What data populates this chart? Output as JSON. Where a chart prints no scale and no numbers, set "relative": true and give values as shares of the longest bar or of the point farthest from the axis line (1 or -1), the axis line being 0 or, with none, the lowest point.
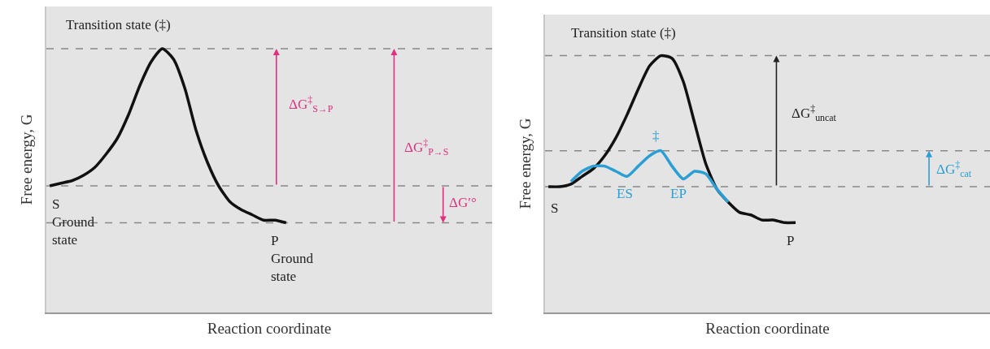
{
  "chart_data": [
    {
      "type": "line",
      "xlabel": "Reaction coordinate",
      "ylabel": "Free energy, G",
      "relative": true,
      "tick_labels": false,
      "marker": "none",
      "line_style": "solid",
      "categories": [
        null,
        null,
        null,
        null,
        null,
        null,
        null,
        null,
        null,
        null,
        null,
        null,
        null,
        null,
        null,
        null,
        null,
        null,
        null,
        null,
        null,
        null,
        null,
        null,
        null,
        null,
        null,
        null,
        null,
        null,
        null,
        null,
        null,
        null,
        null,
        null,
        null,
        null,
        null,
        null
      ],
      "series": [
        {
          "color": "#111111",
          "values": [
            0.48,
            0.49,
            0.5,
            0.52,
            0.55,
            0.6,
            0.66,
            0.75,
            0.86,
            0.95,
            1.0,
            0.96,
            0.85,
            0.69,
            0.57,
            0.48,
            0.42,
            0.39,
            0.37,
            0.35,
            0.35,
            0.34,
            null,
            null,
            null,
            null,
            null,
            null,
            null,
            null,
            null,
            null,
            null,
            null,
            null,
            null,
            null,
            null,
            null,
            null
          ]
        }
      ],
      "ref_lines": [
        {
          "axis": "y",
          "value": 1.0,
          "color": "#888888",
          "line_style": "dashed"
        },
        {
          "axis": "y",
          "value": 0.48,
          "color": "#888888",
          "line_style": "dashed"
        },
        {
          "axis": "y",
          "value": 0.34,
          "color": "#888888",
          "line_style": "dashed"
        }
      ],
      "annotations": [
        "Transition state (‡)",
        "S\nGround\nstate",
        "P\nGround\nstate",
        "ΔG$^{‡}$$_{S→P}$",
        "ΔG$^{‡}$$_{P→S}$",
        "ΔG′°"
      ]
    },
    {
      "type": "line",
      "xlabel": "Reaction coordinate",
      "ylabel": "Free energy, G",
      "relative": true,
      "tick_labels": false,
      "marker": "none",
      "line_style": "solid",
      "categories": [
        null,
        null,
        null,
        null,
        null,
        null,
        null,
        null,
        null,
        null,
        null,
        null,
        null,
        null,
        null,
        null,
        null,
        null,
        null,
        null,
        null,
        null,
        null,
        null,
        null,
        null,
        null,
        null,
        null,
        null,
        null,
        null,
        null,
        null,
        null,
        null,
        null,
        null,
        null,
        null
      ],
      "series": [
        {
          "color": "#111111",
          "values": [
            0.49,
            0.49,
            0.5,
            0.53,
            0.56,
            0.61,
            0.68,
            0.77,
            0.87,
            0.96,
            1.0,
            0.99,
            0.9,
            0.74,
            0.58,
            0.48,
            0.43,
            0.39,
            0.38,
            0.36,
            0.36,
            0.35,
            0.35,
            null,
            null,
            null,
            null,
            null,
            null,
            null,
            null,
            null,
            null,
            null,
            null,
            null,
            null,
            null,
            null,
            null
          ]
        },
        {
          "color": "#2a9fd6",
          "values": [
            null,
            null,
            0.51,
            0.55,
            0.57,
            0.57,
            0.55,
            0.53,
            0.57,
            0.61,
            0.63,
            0.57,
            0.52,
            0.55,
            0.54,
            0.48,
            0.43,
            null,
            null,
            null,
            null,
            null,
            null,
            null,
            null,
            null,
            null,
            null,
            null,
            null,
            null,
            null,
            null,
            null,
            null,
            null,
            null,
            null,
            null,
            null
          ]
        }
      ],
      "ref_lines": [
        {
          "axis": "y",
          "value": 1.0,
          "color": "#888888",
          "line_style": "dashed"
        },
        {
          "axis": "y",
          "value": 0.63,
          "color": "#888888",
          "line_style": "dashed"
        },
        {
          "axis": "y",
          "value": 0.49,
          "color": "#888888",
          "line_style": "dashed"
        }
      ],
      "annotations": [
        "Transition state (‡)",
        "‡",
        "ES",
        "EP",
        "S",
        "P",
        "ΔG$^{‡}$$_{uncat}$",
        "ΔG$^{‡}$$_{cat}$"
      ]
    }
  ]
}
